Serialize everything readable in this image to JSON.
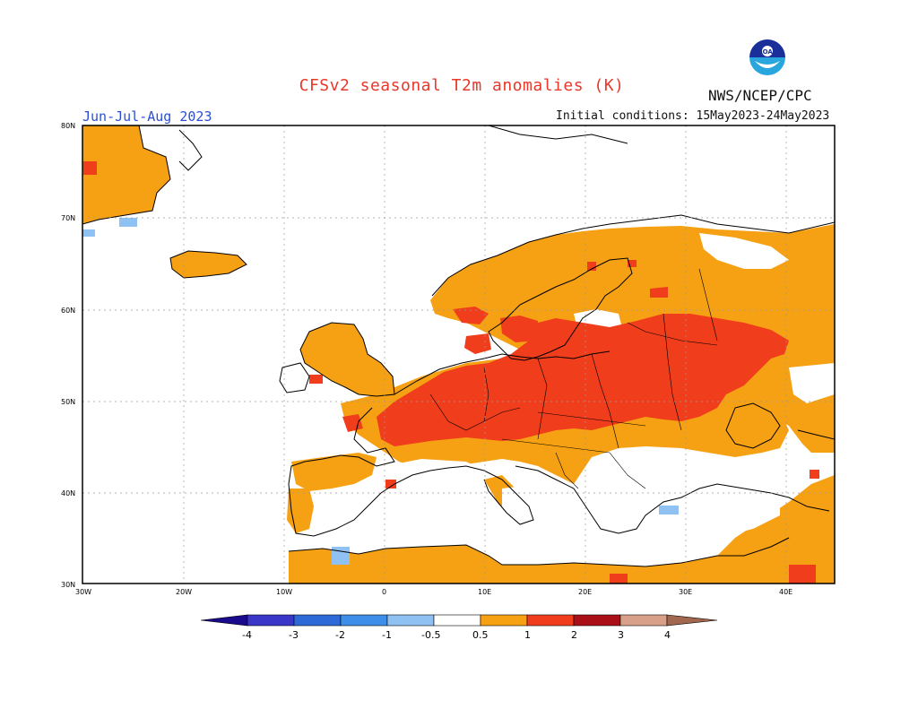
{
  "header": {
    "title": "CFSv2 seasonal T2m anomalies (K)",
    "agency": "NWS/NCEP/CPC",
    "logo_text": "NOAA",
    "season": "Jun-Jul-Aug 2023",
    "initial_conditions": "Initial conditions: 15May2023-24May2023"
  },
  "axes": {
    "lat_labels": [
      "80N",
      "70N",
      "60N",
      "50N",
      "40N",
      "30N"
    ],
    "lon_labels": [
      "30W",
      "20W",
      "10W",
      "0",
      "10E",
      "20E",
      "30E",
      "40E"
    ]
  },
  "colorbar": {
    "labels": [
      "-4",
      "-3",
      "-2",
      "-1",
      "-0.5",
      "0.5",
      "1",
      "2",
      "3",
      "4"
    ],
    "colors": [
      "#1a0a8c",
      "#3a37c8",
      "#2d6ad8",
      "#3d8ee8",
      "#8fc1f2",
      "#ffffff",
      "#f6a013",
      "#f03d1b",
      "#a80f17",
      "#d9a089",
      "#a2684f"
    ]
  },
  "map": {
    "colors": {
      "ocean": "#ffffff",
      "land_neutral": "#ffffff",
      "anom_0_5_to_1": "#f6a013",
      "anom_1_to_2": "#f03d1b",
      "anom_2_to_3": "#a80f17",
      "anom_neg_0_5_to_neg_1": "#8fc1f2",
      "coastline": "#000000",
      "grid": "#9a9a9a"
    }
  }
}
